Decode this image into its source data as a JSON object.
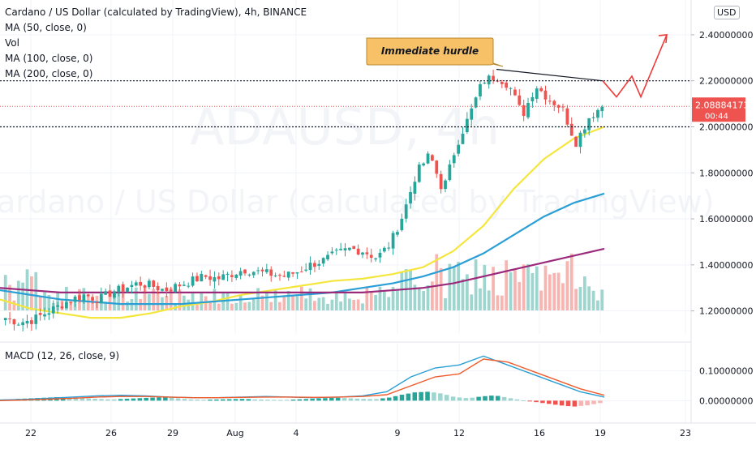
{
  "header": {
    "title": "Cardano / US Dollar (calculated by TradingView), 4h, BINANCE",
    "indicators": [
      "MA (50, close, 0)",
      "Vol",
      "MA (100, close, 0)",
      "MA (200, close, 0)"
    ],
    "currency": "USD"
  },
  "watermark": {
    "symbol": "ADAUSD, 4h",
    "name": "Cardano / US Dollar (calculated by TradingView)"
  },
  "annotation": {
    "label": "Immediate hurdle"
  },
  "price_badge": {
    "price": "2.08884173",
    "countdown": "00:44"
  },
  "macd": {
    "label": "MACD (12, 26, close, 9)"
  },
  "colors": {
    "up": "#26a69a",
    "down": "#ef5350",
    "ma50": "#f5e63d",
    "ma100": "#2a9fd6",
    "ma200": "#9c2a7a",
    "annotation_fill": "#f7c267",
    "arrow": "#ef3b3b",
    "macd_line": "#2a9fd6",
    "signal_line": "#f15a2b"
  },
  "chart_data": [
    {
      "type": "candlestick",
      "title": "Cardano / US Dollar (calculated by TradingView), 4h, BINANCE",
      "xlabel": "",
      "ylabel": "",
      "x_ticks": [
        "22",
        "26",
        "29",
        "Aug",
        "4",
        "9",
        "12",
        "16",
        "19",
        "23"
      ],
      "y_ticks": [
        "1.20000000",
        "1.40000000",
        "1.60000000",
        "1.80000000",
        "2.00000000",
        "2.20000000",
        "2.40000000"
      ],
      "ylim": [
        1.1,
        2.53
      ],
      "horizontal_levels": [
        2.2,
        2.0
      ],
      "trendline": {
        "from_price": 2.25,
        "to_price": 2.2
      },
      "projection_path": [
        2.2,
        2.13,
        2.22,
        2.13,
        2.4
      ],
      "last_price": 2.08884173,
      "close_path": [
        1.17,
        1.15,
        1.16,
        1.19,
        1.22,
        1.25,
        1.27,
        1.25,
        1.28,
        1.3,
        1.32,
        1.31,
        1.29,
        1.31,
        1.33,
        1.35,
        1.34,
        1.36,
        1.38,
        1.37,
        1.36,
        1.35,
        1.37,
        1.4,
        1.42,
        1.45,
        1.47,
        1.46,
        1.43,
        1.49,
        1.62,
        1.8,
        1.88,
        1.72,
        1.92,
        2.05,
        2.2,
        2.22,
        2.18,
        2.05,
        2.18,
        2.12,
        2.08,
        1.93,
        2.04,
        2.09
      ],
      "series": [
        {
          "name": "MA (50, close, 0)",
          "values": [
            1.25,
            1.21,
            1.19,
            1.17,
            1.17,
            1.19,
            1.22,
            1.24,
            1.27,
            1.29,
            1.31,
            1.33,
            1.34,
            1.36,
            1.39,
            1.46,
            1.57,
            1.73,
            1.86,
            1.95,
            2.0
          ]
        },
        {
          "name": "MA (100, close, 0)",
          "values": [
            1.29,
            1.27,
            1.25,
            1.24,
            1.23,
            1.23,
            1.23,
            1.24,
            1.25,
            1.26,
            1.27,
            1.28,
            1.3,
            1.32,
            1.35,
            1.39,
            1.45,
            1.53,
            1.61,
            1.67,
            1.71
          ]
        },
        {
          "name": "MA (200, close, 0)",
          "values": [
            1.3,
            1.29,
            1.28,
            1.28,
            1.28,
            1.28,
            1.28,
            1.28,
            1.28,
            1.28,
            1.28,
            1.28,
            1.28,
            1.29,
            1.3,
            1.32,
            1.35,
            1.38,
            1.41,
            1.44,
            1.47
          ]
        }
      ]
    },
    {
      "type": "bar",
      "title": "MACD (12, 26, close, 9)",
      "xlabel": "",
      "ylabel": "",
      "y_ticks": [
        "0.10000000",
        "0.00000000"
      ],
      "ylim": [
        -0.07,
        0.17
      ],
      "histogram": [
        0.004,
        0.006,
        0.008,
        0.01,
        0.012,
        0.01,
        0.008,
        0.006,
        0.004,
        0.006,
        0.008,
        0.01,
        0.012,
        0.008,
        0.004,
        0.003,
        0.004,
        0.005,
        0.006,
        0.004,
        0.003,
        0.002,
        0.004,
        0.006,
        0.008,
        0.01,
        0.008,
        0.006,
        0.005,
        0.01,
        0.02,
        0.028,
        0.03,
        0.024,
        0.012,
        0.008,
        0.014,
        0.018,
        0.01,
        0.002,
        -0.004,
        -0.01,
        -0.016,
        -0.02,
        -0.016,
        -0.008
      ],
      "series": [
        {
          "name": "MACD",
          "values": [
            0.002,
            0.004,
            0.008,
            0.012,
            0.016,
            0.018,
            0.016,
            0.012,
            0.01,
            0.01,
            0.012,
            0.014,
            0.012,
            0.01,
            0.012,
            0.016,
            0.03,
            0.08,
            0.11,
            0.12,
            0.15,
            0.12,
            0.09,
            0.06,
            0.03,
            0.012
          ]
        },
        {
          "name": "Signal",
          "values": [
            0.0,
            0.002,
            0.005,
            0.008,
            0.012,
            0.014,
            0.014,
            0.012,
            0.01,
            0.01,
            0.011,
            0.012,
            0.012,
            0.011,
            0.012,
            0.014,
            0.02,
            0.05,
            0.08,
            0.09,
            0.14,
            0.13,
            0.1,
            0.07,
            0.04,
            0.018
          ]
        }
      ]
    }
  ]
}
